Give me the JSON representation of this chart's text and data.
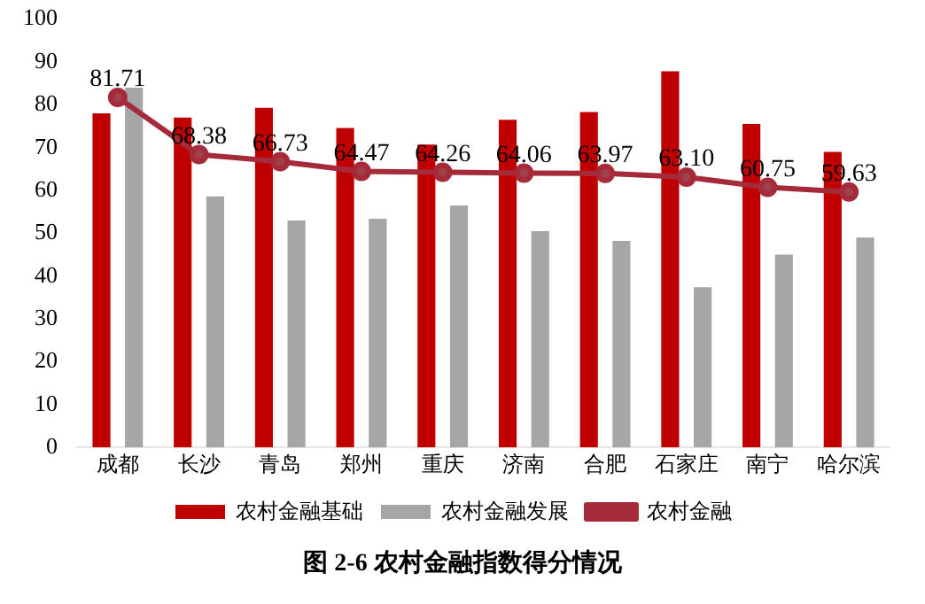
{
  "chart_data": {
    "type": "bar",
    "title": "图 2-6  农村金融指数得分情况",
    "categories": [
      "成都",
      "长沙",
      "青岛",
      "郑州",
      "重庆",
      "济南",
      "合肥",
      "石家庄",
      "南宁",
      "哈尔滨"
    ],
    "series": [
      {
        "name": "农村金融基础",
        "color": "#c00000",
        "values": [
          78,
          77,
          79.3,
          74.6,
          70.7,
          76.5,
          78.3,
          87.8,
          75.5,
          69
        ]
      },
      {
        "name": "农村金融发展",
        "color": "#a6a6a6",
        "values": [
          84,
          58.6,
          53,
          53.4,
          56.5,
          50.5,
          48.2,
          37.4,
          45,
          49
        ]
      },
      {
        "name": "农村金融",
        "type": "line",
        "color": "#a52a3a",
        "values": [
          81.71,
          68.38,
          66.73,
          64.47,
          64.26,
          64.06,
          63.97,
          63.1,
          60.75,
          59.63
        ],
        "value_labels": [
          "81.71",
          "68.38",
          "66.73",
          "64.47",
          "64.26",
          "64.06",
          "63.97",
          "63.10",
          "60.75",
          "59.63"
        ],
        "marker": "circle"
      }
    ],
    "ylim": [
      0,
      100
    ],
    "yticks": [
      0,
      10,
      20,
      30,
      40,
      50,
      60,
      70,
      80,
      90,
      100
    ],
    "grid": false,
    "legend": "bottom"
  }
}
